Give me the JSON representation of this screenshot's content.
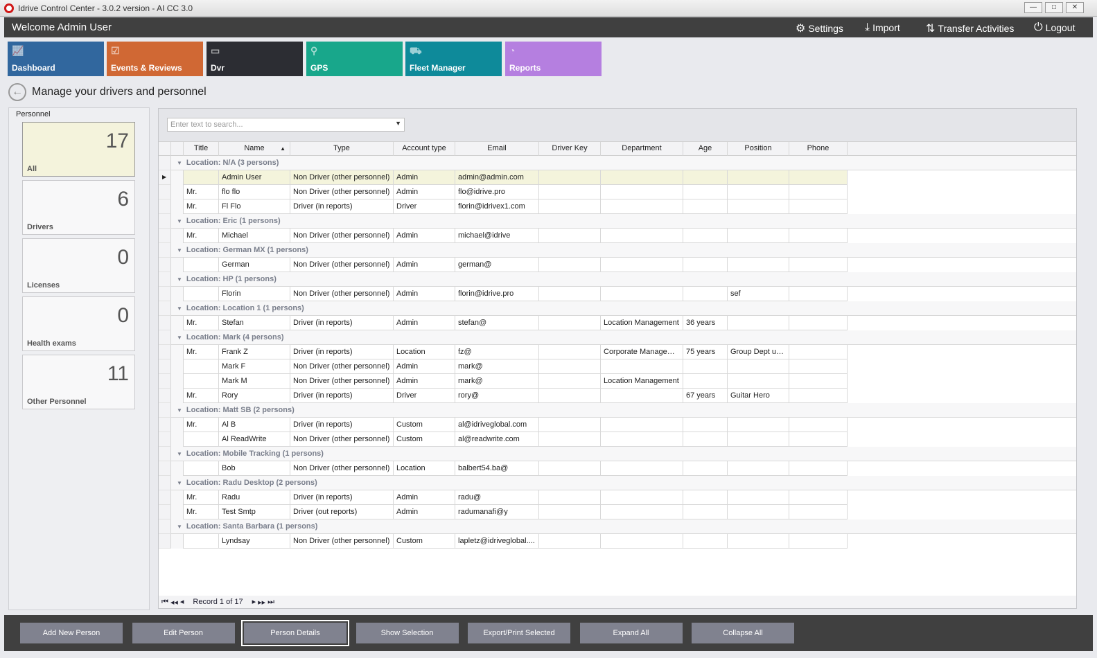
{
  "window": {
    "title": "Idrive Control Center - 3.0.2 version - AI CC 3.0",
    "min": "—",
    "max": "□",
    "close": "✕"
  },
  "header": {
    "welcome": "Welcome Admin User",
    "links": [
      {
        "label": "Settings",
        "icon": "gear-icon",
        "glyph": "⚙"
      },
      {
        "label": "Import",
        "icon": "download-icon",
        "glyph": "⤓"
      },
      {
        "label": "Transfer Activities",
        "icon": "transfer-icon",
        "glyph": "⇅"
      },
      {
        "label": "Logout",
        "icon": "power-icon",
        "glyph": "⏻"
      }
    ]
  },
  "tiles": [
    {
      "label": "Dashboard",
      "color": "#31679e",
      "glyph": "📈"
    },
    {
      "label": "Events & Reviews",
      "color": "#d06834",
      "glyph": "☑"
    },
    {
      "label": "Dvr",
      "color": "#2c2d33",
      "glyph": "▭"
    },
    {
      "label": "GPS",
      "color": "#18a78b",
      "glyph": "⚲"
    },
    {
      "label": "Fleet Manager",
      "color": "#0e8a9a",
      "glyph": "⛟"
    },
    {
      "label": "Reports",
      "color": "#b57fe0",
      "glyph": "◔"
    }
  ],
  "page": {
    "title": "Manage your drivers and personnel"
  },
  "personnel": {
    "title": "Personnel",
    "cards": [
      {
        "count": "17",
        "label": "All"
      },
      {
        "count": "6",
        "label": "Drivers"
      },
      {
        "count": "0",
        "label": "Licenses"
      },
      {
        "count": "0",
        "label": "Health exams"
      },
      {
        "count": "11",
        "label": "Other Personnel"
      }
    ]
  },
  "search": {
    "placeholder": "Enter text to search..."
  },
  "columns": [
    "Title",
    "Name",
    "Type",
    "Account type",
    "Email",
    "Driver Key",
    "Department",
    "Age",
    "Position",
    "Phone"
  ],
  "sort": {
    "column": "Name",
    "direction": "ascending"
  },
  "groups": [
    {
      "label": "Location: N/A (3 persons)",
      "rows": [
        [
          "",
          "Admin User",
          "Non Driver (other personnel)",
          "Admin",
          "admin@admin.com",
          "",
          "",
          "",
          "",
          ""
        ],
        [
          "Mr.",
          "flo flo",
          "Non Driver (other personnel)",
          "Admin",
          "flo@idrive.pro",
          "",
          "",
          "",
          "",
          ""
        ],
        [
          "Mr.",
          "Fl Flo",
          "Driver (in reports)",
          "Driver",
          "florin@idrivex1.com",
          "",
          "",
          "",
          "",
          ""
        ]
      ]
    },
    {
      "label": "Location: Eric (1 persons)",
      "rows": [
        [
          "Mr.",
          "Michael",
          "Non Driver (other personnel)",
          "Admin",
          "michael@idrive",
          "",
          "",
          "",
          "",
          ""
        ]
      ]
    },
    {
      "label": "Location: German MX (1 persons)",
      "rows": [
        [
          "",
          "German",
          "Non Driver (other personnel)",
          "Admin",
          "german@",
          "",
          "",
          "",
          "",
          ""
        ]
      ]
    },
    {
      "label": "Location: HP (1 persons)",
      "rows": [
        [
          "",
          "Florin",
          "Non Driver (other personnel)",
          "Admin",
          "florin@idrive.pro",
          "",
          "",
          "",
          "sef",
          ""
        ]
      ]
    },
    {
      "label": "Location: Location 1 (1 persons)",
      "rows": [
        [
          "Mr.",
          "Stefan",
          "Driver (in reports)",
          "Admin",
          "stefan@",
          "",
          "Location Management",
          "36 years",
          "",
          ""
        ]
      ]
    },
    {
      "label": "Location: Mark (4 persons)",
      "rows": [
        [
          "Mr.",
          "Frank Z",
          "Driver (in reports)",
          "Location",
          "fz@",
          "",
          "Corporate Managem...",
          "75 years",
          "Group Dept user",
          ""
        ],
        [
          "",
          "Mark F",
          "Non Driver (other personnel)",
          "Admin",
          "mark@",
          "",
          "",
          "",
          "",
          ""
        ],
        [
          "",
          "Mark M",
          "Non Driver (other personnel)",
          "Admin",
          "mark@",
          "",
          "Location Management",
          "",
          "",
          ""
        ],
        [
          "Mr.",
          "Rory",
          "Driver (in reports)",
          "Driver",
          "rory@",
          "",
          "",
          "67 years",
          "Guitar Hero",
          ""
        ]
      ]
    },
    {
      "label": "Location: Matt SB (2 persons)",
      "rows": [
        [
          "Mr.",
          "Al B",
          "Driver (in reports)",
          "Custom",
          "al@idriveglobal.com",
          "",
          "",
          "",
          "",
          ""
        ],
        [
          "",
          "Al ReadWrite",
          "Non Driver (other personnel)",
          "Custom",
          "al@readwrite.com",
          "",
          "",
          "",
          "",
          ""
        ]
      ]
    },
    {
      "label": "Location: Mobile Tracking (1 persons)",
      "rows": [
        [
          "",
          "Bob",
          "Non Driver (other personnel)",
          "Location",
          "balbert54.ba@",
          "",
          "",
          "",
          "",
          ""
        ]
      ]
    },
    {
      "label": "Location: Radu Desktop (2 persons)",
      "rows": [
        [
          "Mr.",
          "Radu",
          "Driver (in reports)",
          "Admin",
          "radu@",
          "",
          "",
          "",
          "",
          ""
        ],
        [
          "Mr.",
          "Test Smtp",
          "Driver (out reports)",
          "Admin",
          "radumanafi@y",
          "",
          "",
          "",
          "",
          ""
        ]
      ]
    },
    {
      "label": "Location: Santa Barbara (1 persons)",
      "rows": [
        [
          "",
          "Lyndsay",
          "Non Driver (other personnel)",
          "Custom",
          "lapletz@idriveglobal....",
          "",
          "",
          "",
          "",
          ""
        ]
      ]
    }
  ],
  "pager": {
    "text": "Record 1 of 17",
    "first": "⏮",
    "prev_page": "◀◀",
    "prev": "◂",
    "next": "▸",
    "next_page": "▶▶",
    "last": "⏭"
  },
  "actions": [
    "Add New Person",
    "Edit Person",
    "Person Details",
    "Show Selection",
    "Export/Print Selected",
    "Expand All",
    "Collapse All"
  ],
  "colors": {
    "selected_row": "#f4f4dc",
    "header_bar": "#404040",
    "action_button": "#80828f"
  }
}
